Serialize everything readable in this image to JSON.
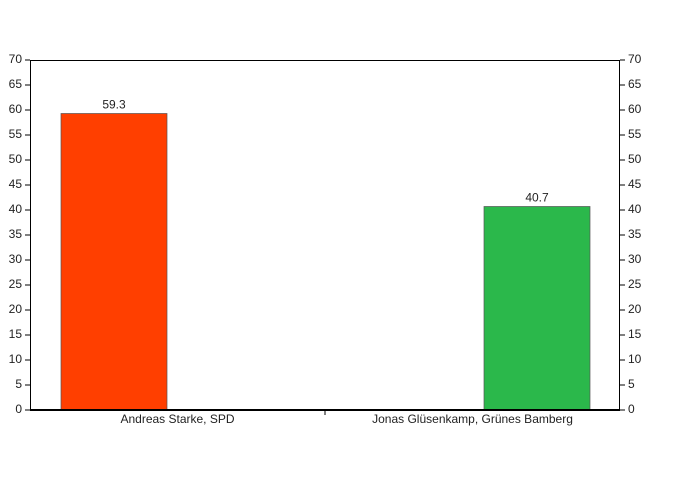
{
  "chart_data": {
    "type": "bar",
    "categories": [
      "Andreas Starke, SPD",
      "Jonas Glüsenkamp, Grünes Bamberg"
    ],
    "values": [
      59.3,
      40.7
    ],
    "colors": [
      "#ff3f00",
      "#2bb84b"
    ],
    "ylim": [
      0,
      70
    ],
    "yticks": [
      0,
      5,
      10,
      15,
      20,
      25,
      30,
      35,
      40,
      45,
      50,
      55,
      60,
      65,
      70
    ],
    "y2lim": [
      0,
      70
    ],
    "y2ticks": [
      0,
      5,
      10,
      15,
      20,
      25,
      30,
      35,
      40,
      45,
      50,
      55,
      60,
      65,
      70
    ]
  }
}
